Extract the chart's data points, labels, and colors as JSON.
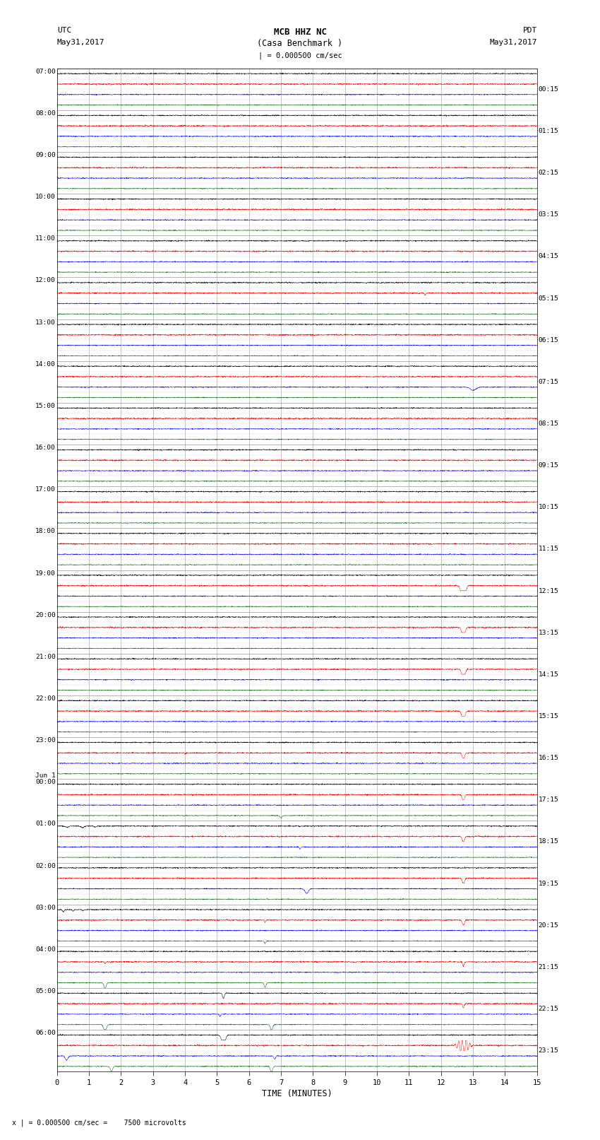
{
  "title_line1": "MCB HHZ NC",
  "title_line2": "(Casa Benchmark )",
  "scale_label": "| = 0.000500 cm/sec",
  "utc_label": "UTC",
  "date_label_left": "May31,2017",
  "date_label_right": "May31,2017",
  "pdt_label": "PDT",
  "bottom_label": "x | = 0.000500 cm/sec =    7500 microvolts",
  "xlabel": "TIME (MINUTES)",
  "background_color": "#ffffff",
  "grid_color": "#999999",
  "trace_colors": [
    "black",
    "red",
    "blue",
    "#006400"
  ],
  "left_time_labels": [
    "07:00",
    "08:00",
    "09:00",
    "10:00",
    "11:00",
    "12:00",
    "13:00",
    "14:00",
    "15:00",
    "16:00",
    "17:00",
    "18:00",
    "19:00",
    "20:00",
    "21:00",
    "22:00",
    "23:00",
    "Jun 1\n00:00",
    "01:00",
    "02:00",
    "03:00",
    "04:00",
    "05:00",
    "06:00"
  ],
  "right_time_labels": [
    "00:15",
    "01:15",
    "02:15",
    "03:15",
    "04:15",
    "05:15",
    "06:15",
    "07:15",
    "08:15",
    "09:15",
    "10:15",
    "11:15",
    "12:15",
    "13:15",
    "14:15",
    "15:15",
    "16:15",
    "17:15",
    "18:15",
    "19:15",
    "20:15",
    "21:15",
    "22:15",
    "23:15"
  ],
  "n_rows": 24,
  "n_traces_per_row": 4,
  "minutes_per_row": 15,
  "fig_width": 8.5,
  "fig_height": 16.13,
  "dpi": 100
}
